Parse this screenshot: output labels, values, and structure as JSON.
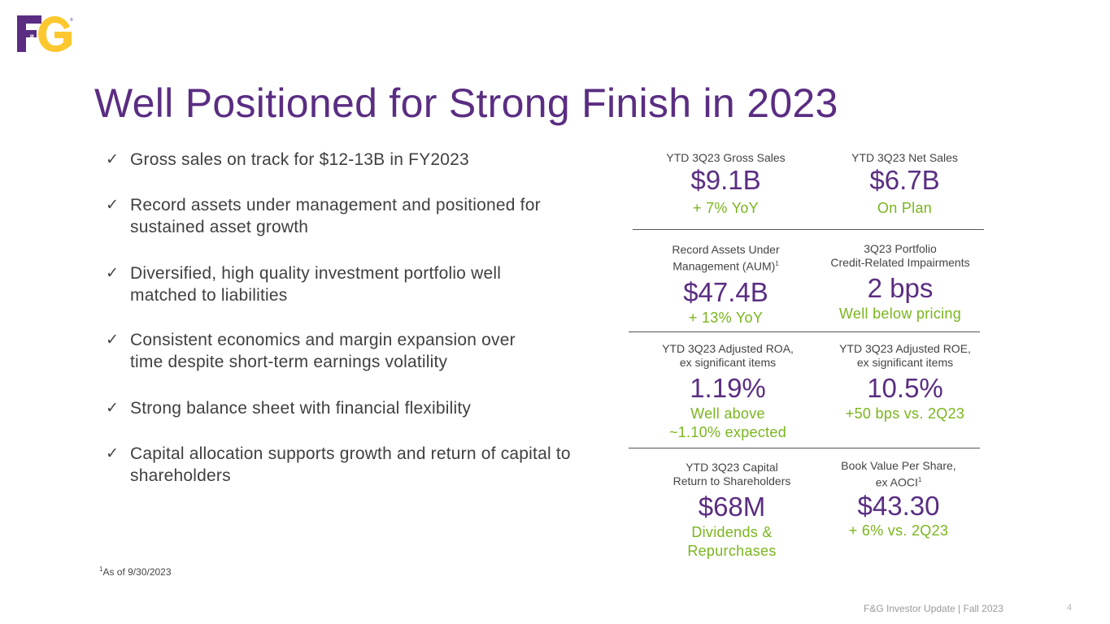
{
  "brand": {
    "logo": "F&G",
    "primary": "#5a2d82",
    "accent": "#fdc82f",
    "highlight": "#7ab51d"
  },
  "title": "Well Positioned for Strong Finish in 2023",
  "bullets": [
    {
      "icon": "check-icon",
      "text": "Gross sales on track for $12-13B in FY2023"
    },
    {
      "icon": "check-icon",
      "text": "Record assets under management and positioned for sustained asset growth"
    },
    {
      "icon": "check-icon",
      "text": "Diversified, high quality investment portfolio well matched to liabilities"
    },
    {
      "icon": "check-icon",
      "text": "Consistent economics and margin expansion over time despite short-term earnings volatility"
    },
    {
      "icon": "check-icon",
      "text": "Strong balance sheet with financial flexibility"
    },
    {
      "icon": "check-icon",
      "text": "Capital allocation supports growth and return of capital to shareholders"
    }
  ],
  "check_glyph": "✓",
  "metrics": {
    "gross_sales": {
      "label": "YTD 3Q23 Gross Sales",
      "value": "$9.1B",
      "note": "+ 7% YoY"
    },
    "net_sales": {
      "label": "YTD 3Q23 Net Sales",
      "value": "$6.7B",
      "note": "On Plan"
    },
    "aum": {
      "label_line1": "Record Assets Under",
      "label_line2": "Management (AUM)",
      "label_sup": "1",
      "value": "$47.4B",
      "note": "+ 13% YoY"
    },
    "impairments": {
      "label_line1": "3Q23 Portfolio",
      "label_line2": "Credit-Related Impairments",
      "value": "2 bps",
      "note": "Well below pricing"
    },
    "roa": {
      "label_line1": "YTD 3Q23 Adjusted ROA,",
      "label_line2": "ex significant items",
      "value": "1.19%",
      "note_line1": "Well above",
      "note_line2": "~1.10% expected"
    },
    "roe": {
      "label_line1": "YTD 3Q23 Adjusted ROE,",
      "label_line2": "ex significant items",
      "value": "10.5%",
      "note": "+50 bps vs. 2Q23"
    },
    "capital_return": {
      "label_line1": "YTD 3Q23 Capital",
      "label_line2": "Return to Shareholders",
      "value": "$68M",
      "note_line1": "Dividends &",
      "note_line2": "Repurchases"
    },
    "book_value": {
      "label_line1": "Book Value Per Share,",
      "label_line2": "ex AOCI",
      "label_sup": "1",
      "value": "$43.30",
      "note": "+ 6% vs. 2Q23"
    }
  },
  "footnote": {
    "sup": "1",
    "text": "As of 9/30/2023"
  },
  "footer": "F&G Investor Update | Fall 2023",
  "page_number": "4"
}
